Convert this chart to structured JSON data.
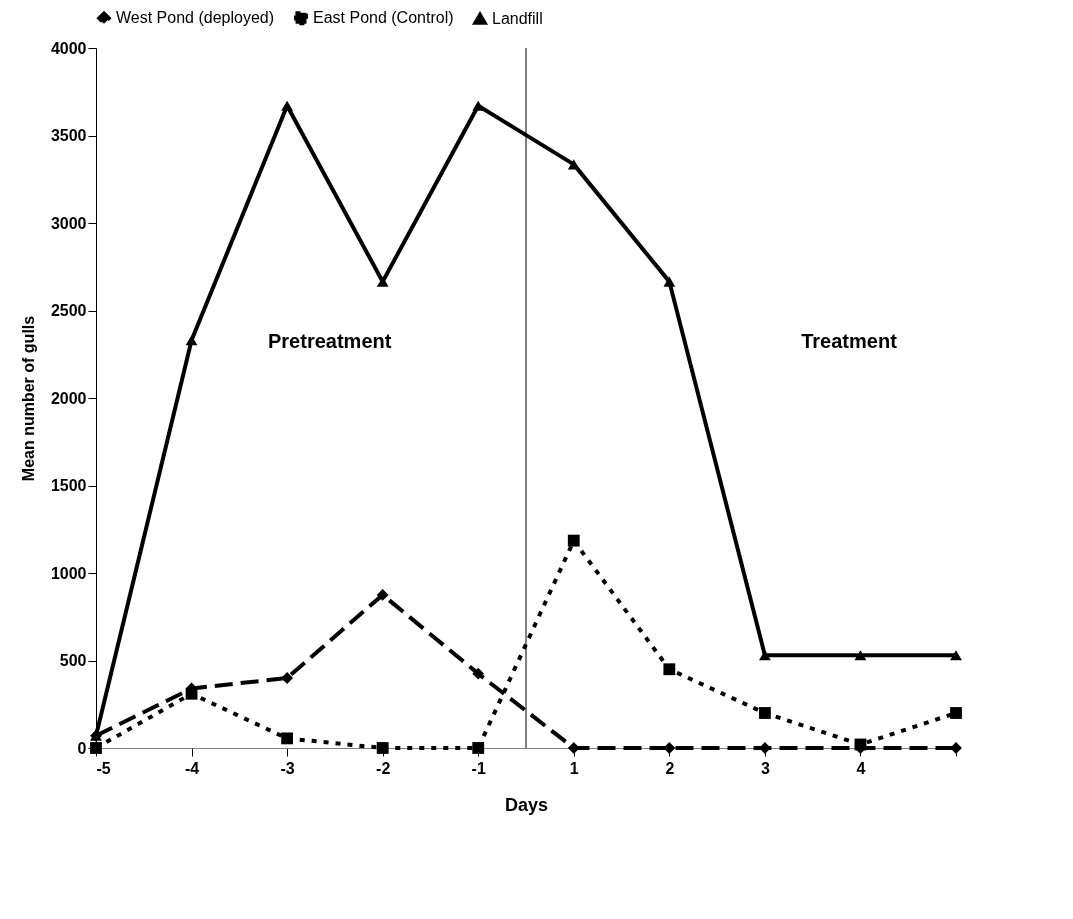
{
  "chart_data": {
    "type": "line",
    "xlabel": "Days",
    "ylabel": "Mean number of gulls",
    "categories": [
      "-5",
      "-4",
      "-3",
      "-2",
      "-1",
      "1",
      "2",
      "3",
      "4",
      null
    ],
    "series": [
      {
        "name": "West Pond (deployed)",
        "color": "#000000",
        "marker": "diamond",
        "line_style": "dashed",
        "values": [
          70,
          340,
          400,
          875,
          425,
          0,
          0,
          0,
          0,
          0
        ]
      },
      {
        "name": "East Pond (Control)",
        "color": "#000000",
        "marker": "square",
        "line_style": "dotted",
        "values": [
          0,
          310,
          55,
          0,
          0,
          1185,
          450,
          200,
          20,
          200
        ]
      },
      {
        "name": "Landfill",
        "color": "#000000",
        "marker": "triangle",
        "line_style": "solid",
        "values": [
          70,
          2330,
          3670,
          2665,
          3670,
          3335,
          2665,
          530,
          530,
          530
        ]
      }
    ],
    "ylim": [
      0,
      4000
    ],
    "yticks": [
      0,
      500,
      1000,
      1500,
      2000,
      2500,
      3000,
      3500,
      4000
    ],
    "grid": false,
    "legend": "top",
    "annotations": [
      "Pretreatment",
      "Treatment"
    ]
  }
}
